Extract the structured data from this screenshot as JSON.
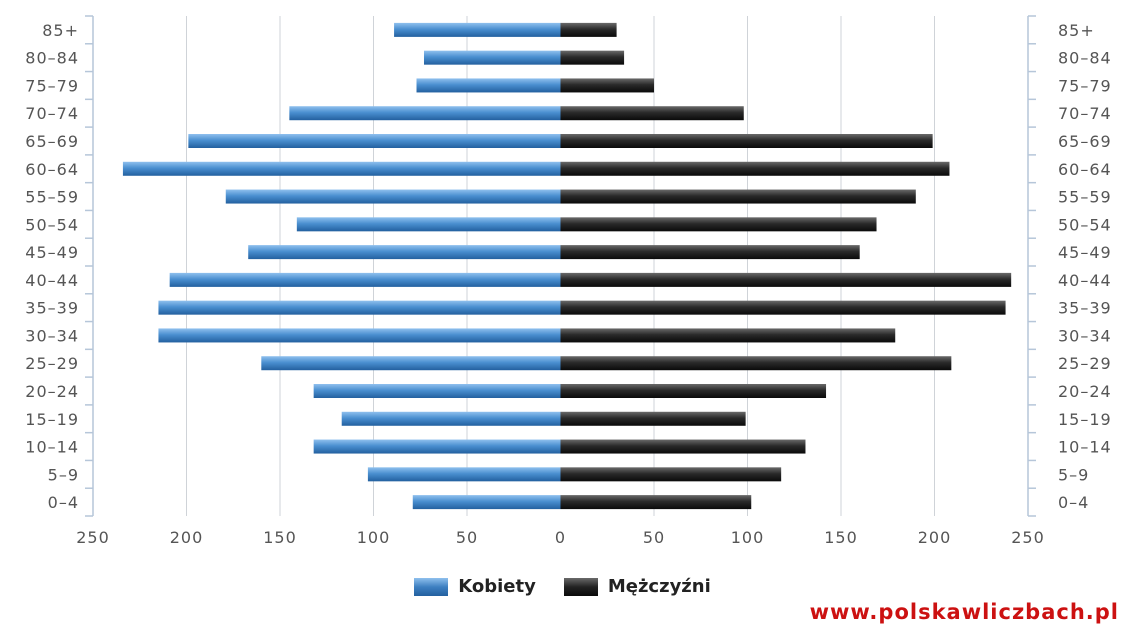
{
  "chart_data": {
    "type": "bar",
    "orientation": "horizontal",
    "subtype": "population-pyramid",
    "categories": [
      "85+",
      "80-84",
      "75-79",
      "70-74",
      "65-69",
      "60-64",
      "55-59",
      "50-54",
      "45-49",
      "40-44",
      "35-39",
      "30-34",
      "25-29",
      "20-24",
      "15-19",
      "10-14",
      "5-9",
      "0-4"
    ],
    "category_labels": [
      "85+",
      "80–84",
      "75–79",
      "70–74",
      "65–69",
      "60–64",
      "55–59",
      "50–54",
      "45–49",
      "40–44",
      "35–39",
      "30–34",
      "25–29",
      "20–24",
      "15–19",
      "10–14",
      "5–9",
      "0–4"
    ],
    "series": [
      {
        "name": "Kobiety",
        "side": "left",
        "color": "#3d7fc1",
        "values": [
          89,
          73,
          77,
          145,
          199,
          234,
          179,
          141,
          167,
          209,
          215,
          215,
          160,
          132,
          117,
          132,
          103,
          79
        ]
      },
      {
        "name": "Mężczyźni",
        "side": "right",
        "color": "#222222",
        "values": [
          30,
          34,
          50,
          98,
          199,
          208,
          190,
          169,
          160,
          241,
          238,
          179,
          209,
          142,
          99,
          131,
          118,
          102
        ]
      }
    ],
    "xlim": [
      -250,
      250
    ],
    "x_ticks": [
      -250,
      -200,
      -150,
      -100,
      -50,
      0,
      50,
      100,
      150,
      200,
      250
    ],
    "x_tick_labels": [
      "250",
      "200",
      "150",
      "100",
      "50",
      "0",
      "50",
      "100",
      "150",
      "200",
      "250"
    ],
    "grid": true,
    "legend": "bottom-center",
    "title": "",
    "xlabel": "",
    "ylabel": ""
  },
  "legend": {
    "female_label": "Kobiety",
    "male_label": "Mężczyźni"
  },
  "source_text": "www.polskawliczbach.pl"
}
